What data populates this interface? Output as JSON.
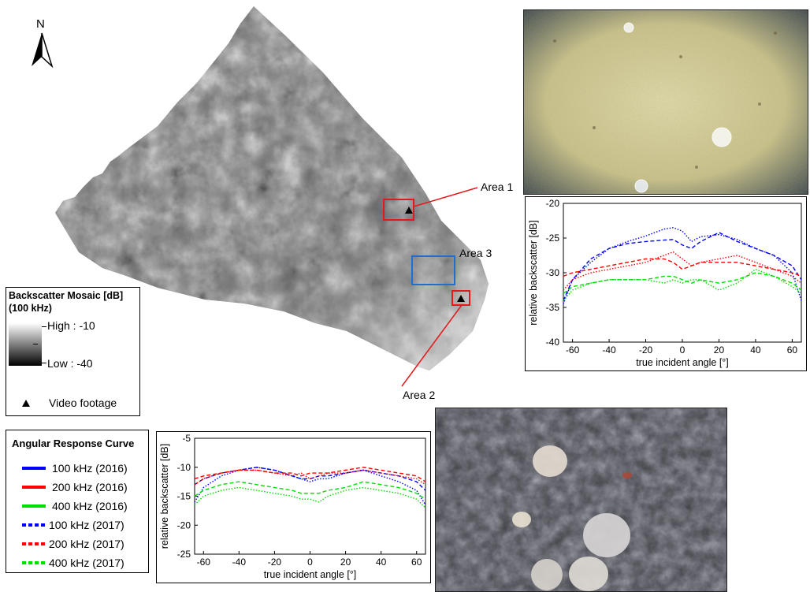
{
  "north_arrow": {
    "label": "N"
  },
  "map": {
    "areas": [
      {
        "id": "area1",
        "label": "Area 1",
        "color": "#e31a1c"
      },
      {
        "id": "area2",
        "label": "Area 2",
        "color": "#e31a1c"
      },
      {
        "id": "area3",
        "label": "Area 3",
        "color": "#1f6fd1"
      }
    ]
  },
  "backscatter_legend": {
    "title_line1": "Backscatter Mosaic [dB]",
    "title_line2": "(100 kHz)",
    "high_label": "High : -10",
    "low_label": "Low : -40",
    "video_label": "Video footage"
  },
  "arc_legend": {
    "title": "Angular Response Curve",
    "items": [
      {
        "label": "100 kHz (2016)",
        "color": "#0000ff",
        "style": "solid"
      },
      {
        "label": "200 kHz (2016)",
        "color": "#ff0000",
        "style": "solid"
      },
      {
        "label": "400 kHz (2016)",
        "color": "#00dd00",
        "style": "solid"
      },
      {
        "label": "100 kHz (2017)",
        "color": "#0000ff",
        "style": "dotted"
      },
      {
        "label": "200 kHz (2017)",
        "color": "#ff0000",
        "style": "dotted"
      },
      {
        "label": "400 kHz (2017)",
        "color": "#00dd00",
        "style": "dotted"
      }
    ]
  },
  "chart_data": [
    {
      "id": "chart-area1",
      "type": "line",
      "xlabel": "true incident angle [°]",
      "ylabel": "relative backscatter [dB]",
      "xlim": [
        -65,
        65
      ],
      "ylim": [
        -40,
        -20
      ],
      "xticks": [
        "-60",
        "-40",
        "-20",
        "0",
        "20",
        "40",
        "60"
      ],
      "yticks": [
        "-20",
        "-25",
        "-30",
        "-35",
        "-40"
      ],
      "x": [
        -65,
        -60,
        -50,
        -40,
        -30,
        -20,
        -10,
        -5,
        0,
        5,
        10,
        20,
        30,
        40,
        50,
        60,
        65
      ],
      "series": [
        {
          "color": "#0000ff",
          "style": "dash",
          "values": [
            -34,
            -31,
            -28,
            -26.5,
            -25.8,
            -25.5,
            -25.3,
            -25.2,
            -26,
            -26.5,
            -25.5,
            -24.2,
            -25.5,
            -26.5,
            -27.5,
            -29,
            -31
          ]
        },
        {
          "color": "#0000ff",
          "style": "dot",
          "values": [
            -34.5,
            -31,
            -28.5,
            -26.5,
            -25.5,
            -24.7,
            -23.7,
            -23.5,
            -24,
            -25.5,
            -24.8,
            -24.5,
            -25.2,
            -26.5,
            -27.5,
            -30,
            -34
          ]
        },
        {
          "color": "#ff0000",
          "style": "dash",
          "values": [
            -30.5,
            -30,
            -29.5,
            -29,
            -28.5,
            -28,
            -28,
            -28.5,
            -29.5,
            -29,
            -28.5,
            -28.5,
            -28.5,
            -29,
            -29.5,
            -30,
            -30.5
          ]
        },
        {
          "color": "#ff0000",
          "style": "dot",
          "values": [
            -32.5,
            -31,
            -30,
            -29.5,
            -29,
            -28.5,
            -27.5,
            -27,
            -28,
            -29,
            -28.5,
            -28,
            -27.5,
            -28.5,
            -29.5,
            -30.5,
            -31.5
          ]
        },
        {
          "color": "#00dd00",
          "style": "dash",
          "values": [
            -33,
            -32,
            -31.5,
            -31,
            -31,
            -31,
            -30.5,
            -30.5,
            -31,
            -31.5,
            -31,
            -31.5,
            -31,
            -30,
            -30.5,
            -31.5,
            -32.5
          ]
        },
        {
          "color": "#00dd00",
          "style": "dot",
          "values": [
            -34,
            -32.5,
            -31.5,
            -31,
            -31,
            -31,
            -31.5,
            -31,
            -31.5,
            -31,
            -31,
            -32.5,
            -31.5,
            -29.5,
            -30.5,
            -32,
            -33
          ]
        }
      ]
    },
    {
      "id": "chart-area2",
      "type": "line",
      "xlabel": "true incident angle [°]",
      "ylabel": "relative backscatter [dB]",
      "xlim": [
        -65,
        65
      ],
      "ylim": [
        -25,
        -5
      ],
      "xticks": [
        "-60",
        "-40",
        "-20",
        "0",
        "20",
        "40",
        "60"
      ],
      "yticks": [
        "-5",
        "-10",
        "-15",
        "-20",
        "-25"
      ],
      "x": [
        -65,
        -60,
        -50,
        -40,
        -30,
        -20,
        -10,
        -5,
        0,
        5,
        10,
        20,
        30,
        40,
        50,
        60,
        65
      ],
      "series": [
        {
          "color": "#0000ff",
          "style": "dash",
          "values": [
            -13,
            -12,
            -11,
            -10.5,
            -10,
            -10.5,
            -11.5,
            -12,
            -12,
            -11.5,
            -11.5,
            -11,
            -10.5,
            -11,
            -11.5,
            -12.5,
            -14
          ]
        },
        {
          "color": "#0000ff",
          "style": "dot",
          "values": [
            -16,
            -13.5,
            -11.5,
            -10.5,
            -10,
            -10.5,
            -11.5,
            -12,
            -12.5,
            -12,
            -12,
            -11,
            -10.5,
            -11.5,
            -12.5,
            -14,
            -16.5
          ]
        },
        {
          "color": "#ff0000",
          "style": "dash",
          "values": [
            -12,
            -11.5,
            -11,
            -10.5,
            -10.5,
            -11,
            -11,
            -11.5,
            -11,
            -11,
            -11,
            -10.5,
            -10,
            -10.5,
            -11,
            -11.5,
            -12.5
          ]
        },
        {
          "color": "#ff0000",
          "style": "dot",
          "values": [
            -13,
            -12,
            -11,
            -10.5,
            -10.5,
            -11,
            -11.5,
            -11,
            -12,
            -11.5,
            -11,
            -11,
            -10.5,
            -11,
            -11.5,
            -12,
            -13
          ]
        },
        {
          "color": "#00dd00",
          "style": "dash",
          "values": [
            -15,
            -14,
            -13,
            -12.5,
            -13,
            -13.5,
            -14,
            -14.5,
            -14.5,
            -14.5,
            -14,
            -13.5,
            -12.5,
            -13,
            -13.5,
            -14.5,
            -15.5
          ]
        },
        {
          "color": "#00dd00",
          "style": "dot",
          "values": [
            -16.5,
            -15,
            -14,
            -13.5,
            -14,
            -14.5,
            -15,
            -15.5,
            -15.5,
            -16,
            -15,
            -14,
            -13.5,
            -14,
            -14.5,
            -15.5,
            -17
          ]
        }
      ]
    }
  ]
}
